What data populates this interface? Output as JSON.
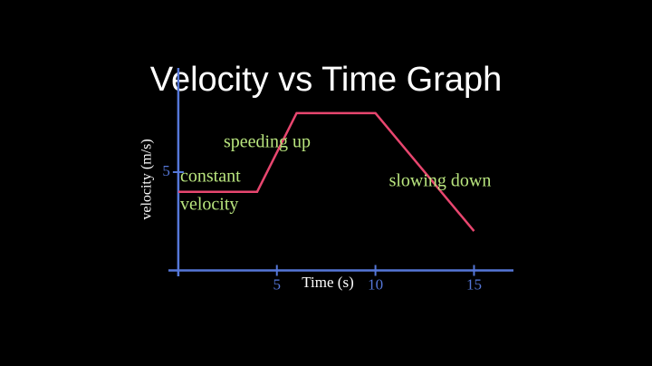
{
  "chart_data": {
    "type": "line",
    "title": "Velocity vs Time Graph",
    "x_label": "Time (s)",
    "y_label": "velocity (m/s)",
    "x": [
      0,
      4,
      6,
      10,
      15
    ],
    "values": [
      4,
      4,
      8,
      8,
      2
    ],
    "color": "#e8466f",
    "axis_color": "#5577d8",
    "annotation_color": "#b9e57e",
    "xlim": [
      -0.5,
      17
    ],
    "ylim": [
      -0.3,
      10.3
    ],
    "xticks": [
      5,
      10,
      15
    ],
    "yticks": [
      5
    ],
    "annotations": [
      "speeding up",
      "constant",
      "velocity",
      "slowing down"
    ]
  }
}
